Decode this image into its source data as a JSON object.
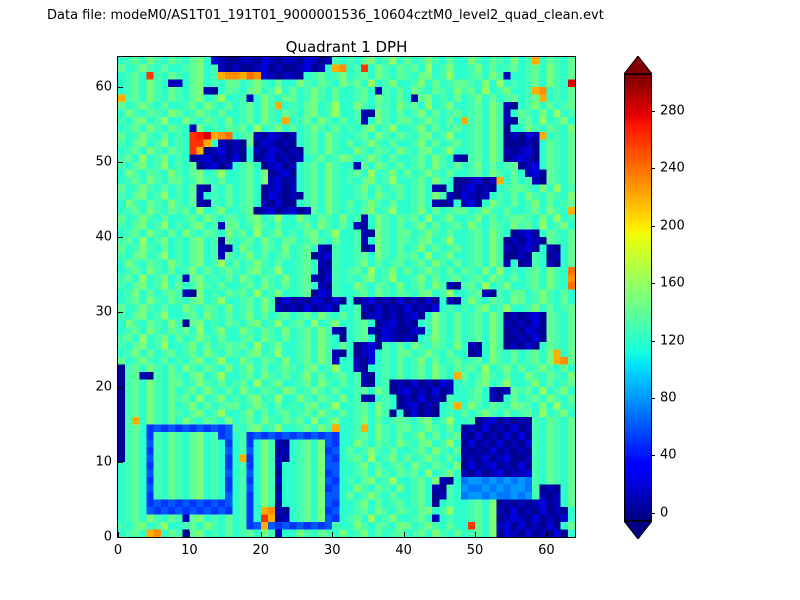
{
  "colors": {
    "background": "#ffffff",
    "text": "#000000",
    "axes_edge": "#000000"
  },
  "header": {
    "data_file_label": "Data file: modeM0/AS1T01_191T01_9000001536_10604cztM0_level2_quad_clean.evt"
  },
  "chart_data": {
    "type": "heatmap",
    "title": "Quadrant 1 DPH",
    "xlabel": "",
    "ylabel": "",
    "xlim": [
      0,
      64
    ],
    "ylim": [
      0,
      64
    ],
    "x_ticks": [
      0,
      10,
      20,
      30,
      40,
      50,
      60
    ],
    "y_ticks": [
      0,
      10,
      20,
      30,
      40,
      50,
      60
    ],
    "grid": false,
    "colormap": "jet",
    "colorbar": {
      "ticks": [
        0,
        40,
        80,
        120,
        160,
        200,
        240,
        280
      ],
      "vmin": -5,
      "vmax": 305,
      "extend": "both",
      "position": "right"
    },
    "value_encoding": {
      "chars": "0123456789ABCDEFGHIJKLMNOPQRSTU",
      "value_per_step": 10,
      "description": "each character encodes detector counts: value = index_in_chars * 10"
    },
    "orientation": {
      "rows": "top-to-bottom (row 0 = y=63)",
      "cols": "left-to-right (col 0 = x=0)"
    },
    "grid_rows_top_to_bottom": [
      "CDECFDCEDCEFC21001102101102101DCDCEFCDGCECDFDCECCFDCEDCFCDMCEDCE",
      "ECDFDCECCDEFCD101001201001201CMNCDQCFDCEDECGCDFCCDFCECDECDECFDCE",
      "CDECQDCEDCEFCDMNNMON210110CDECDFCDECFDCEDCEFCDGCCDECFD1CCDECFDCE",
      "CDECFDC11CEFCDCEECDFDCECCFDCEDCFDECGCDFCCDFCECDEEDCFCGCDCDECFDCS",
      "CDECFDCEDCEF10CEDCEFCDGCECDFDCECCDEC1DCECFDCEDCFDECGCDFCCDMNCDCE",
      "MDECFDCEDCEFCDGCCD1CFDCEECDFDCECCDECFDCEC1EFCDCECDFCECDECDEMCDCE",
      "ECDFDCECCDECFDCECDECFDMCDCEFCDGCCFDCEDCFDECGCDFCCDECFD10CDFCECDE",
      "CFDCEDCFECDFDCECCDECFDCEDCEFCDGCCD10FDCECDFCECDECDECFD1CEDCFCGCD",
      "DCEFCDGCCFDCEDCFCDECFDCMCDECFDCECD1CFDCEECDFDCECMDECFD10DECGCDFC",
      "CDECFDCEDC1FCDCEDECGCDFCECDFDCECDCEFCDGCCDFCECDECDECFD0CCFDCEDCF",
      "ECDFDCECDCQRSMNOCDE102101CDECFDCCDECFDCEDCEFCDGCCDECFD01021MCDCE",
      "DCEFCDGCDCQQMC1010E021010CDECFDCECDFDCECCDFCECDECDECFD00010CEDCE",
      "CDECFDCEDCQM012010C1021010DECFDCCFDCEDCFDCEFCDGCCDECFD10120CEDCE",
      "DECGCDFCDC01201020C0120101CDECDFECDFDCECCDECFDC10DECFD01210CEDCE",
      "DCEFCDGCDCE01201CDEC01201CDECFDCC1ECFDCECDECFDCECDFCECDE012CEDCE",
      "CFDCEDCFDCEFCDGCCDECF0120CDECFDCDECGCDFCECDFDCECCDECFDCEC120EDCE",
      "CDECFDCEECDFDCECCDECF1201CDECFDCDCEFCDGCCDECFDC001201MCECD10EDCE",
      "ECDFDCECDCE10DCECDEC01201CDECFDCCDFCECDECDEC10C012010CDEEDCFCGCD",
      "DCEFCDGCDCE1CDCECDEC021010DECFDCCDECFDCECDECFD102101CDCECFDCEDCF",
      "CFDCEDCFDCE10DCECDEC10200CDECFDCECDFDCECCDEC101C120CFDCECDFCECDE",
      "CDECFDCEDECGCDFCCDE01201201ECFDCDCEFCDGCCDFCECDEECDFDCECCDECFDCM",
      "ECDFDCECCDECFDCEDCEFCDGCCFDCEDCFCD1CFDCEDECGCDFCCDFCECDEEDCFCGCD",
      "DCEFCDGCDCEFCD1EECDFDCECCDECFDCEC10CFDCECDFCECDECFDCEDCFDECGCDFC",
      "CDECFDCECFDCEDCFDECGCDFCDCEFCDGCCD10FDCEECDFDCECCDECFDC0120CEDCE",
      "DECGCDFCDCEFCD0ECDECFDCEECDFDCECCD1CFDCEDCEFCDGCCDECFD010210EDCE",
      "ECDFDCECDCEFCD10CFDCEDCFCDEC10DCCD01FDCECDFCECDECDECFD10120C10CE",
      "DCEFCDGCDCEFCD1ECDFCECDECDE012DCCDECFDCEDECGCDFCCDECFD0010DC01CE",
      "CFDCEDCFDCEFCDGCECDFDCECCDEC10DCCDFCECDECDECFDCECDECFD1C01DC10CE",
      "CDECFDCECDFCECDEDCEFCDGCCDEC01DCDECGCDFCECDFDCECEDCFCGCDCDECFDCO",
      "DECGCDFCD1EFCDCECFDCEDCFCDE102DCDCEFCDGCCDFCECDECDECFDCECDECFDCN",
      "DCEFCDGCECDFDCECCDECFDCECDEC10DCCFDCEDCFCDECFD10DECGCDFCCDECFDCO",
      "CDFCECDED10FCDCEDECGCDFCCDE021DCCDECFDCEDCEFCDGCCDE10DCEECDFDCEC",
      "CDECFDCEDCEFCDGCCDECFD0201021020C012010201020C10CFDCEDCFECDFDCEC",
      "ECDFDCECCFDCEDCFCDECFD101020120CCD10201020102CDCDCEFCDGCCDFCECDE",
      "DCEFCDGCCDECFDCECDFCECDECDECFDCECD012010120CFDCECDECFD010120EDCE",
      "CFDCEDCFD0EFCDCEDCEFCDGCDECGCDFCCDEC012010CDFDCECDECFD101020EDCE",
      "CDECFDCEDECGCDFCCFDCEDCFCDECFD10CDE10210021CFDCECDECFD010210EDCE",
      "DECGCDFCECDFDCECCDECFDCECDECFDC0CDEC021010CDFDCECDECFD001020EDCE",
      "DCEFCDGCCDFCECDEDECGCDFCCDECFDCEC0120DCECFDCEDCFC10CFD01020CEDCE",
      "CDFCECDECDECFDCEDCEFCDGCCDECFD10C012CDCEECDFDCECC01CFDCECDECFMCE",
      "ECDFDCECDCEFCDGCCFDCEDCFCDECFD1CC102CDCECDFCECDECDECFDCECDECFMNE",
      "0DECFDCECFDCEDCFCDFCECDEDCEFCDGCC10CCDCECDECFDCEDECGCDFCECDFDCEC",
      "0DE10DCEDCEFCDGCCDECFDCECDFCECDECD10CDCECDECFDCMECDFDCECCFDCEDCF",
      "0DECFDCEECDFDCECDECGCDFCCDECFDCECD10CD010201021CDCEFCDGCCDFCECDE",
      "0DECFDCECDECFDCECFDCEDCFECDFDCECCDECFD012010201CCDEC101EDECGCDFC",
      "0DECFDCEDECGCDFCDCEFCDGCCFDCEDCFCD10CDC0102010DCCDEC10CECDECFDCE",
      "0DECFDCECDFCECDEECDFDCECDCEFCDGCCDECFDC012010CDMCFDCEDCFEDCFCGCD",
      "0DECFDCEDCEFCDGCCDFCECDECDECFDCECDECFD0C02010CDCECDFDCECDECGCDFC",
      "0DMCFDCECFDCEDCFCDECFDCEDECGCDFCCDFCECDEDCEFCDGCCD01201010DCEDCE",
      "0DEC565656565656DCEFCDGCCDECFDMCCDMCFDCEECDFDCEC0102010201DCEDCE",
      "0DEC5DCEDCEFCD56CD5656565656565CCDECFDCECDFCECDE1020102020DCEDCE",
      "0DEC6DCEDCEFCDC5CD5CFD10CDECF65CCFDCEDCFDCEFCDGC0201020102DCEDCE",
      "0DEC5DCEDCEFCDC6CD6CFD01CDECF56CECDFDCECCDECFDCE1010201010DCEDCE",
      "0DEC6DCEDCEFCDC5CM5CFD10CDECF65CDECGCDFCECDFDCEC0102012001DCEDCE",
      "CDEC5DCEDCEFCDC5CD5CFD1CCDECF66CCDFCECDECFDCEDCF0201201020DCEDCE",
      "CDEC6DCEDCEFCDC6CD6CFD0CCDECF56CCDECFDCEDECGCDFC1020120112DCEDCE",
      "CDEC5DCEDCEFCDC5CD5CFD1CCDECF65CDCEFCDGCCDECF10C7887878787DCEDCE",
      "CDEC6DCEDCEFCDC5CD6CFD0CCDECF56CCFDCEDCFCDEC10DC8778787887D010CE",
      "CDEC5DCEDCEFCDC6CD5CFD1CCDECF66CECDFDCECCDEC01DC7887877878D101CE",
      "CDEC565656565656CD5CFD0CCDECF65CCDFCECDECDEC0CDCCDECF010101201CE",
      "CDEC656565656565CD5CMN10CDECF56CCDECFDCEDCEFCDGCCDECF1020102010C",
      "CDECFDCED1EFCDCECD5CQM01CDECF65CDECGCDFCCDEC1CDCCDECF0121020102C",
      "DCEFCDGCCDECFDCECD56M656565656DCCFDCEDCFECDFDCECCQECF120201020CE",
      "CDECMNCED0EFCDCECDECFD1CCFDCEDCFCDFCECDECDECFDCECDECF0210201020C"
    ]
  }
}
